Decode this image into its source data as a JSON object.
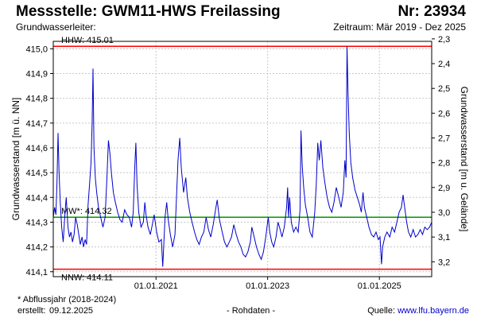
{
  "header": {
    "title": "Messstelle: GWM11-HWS Freilassing",
    "station_number": "Nr: 23934",
    "aquifer_label": "Grundwasserleiter:",
    "period": "Zeitraum: Mär 2019 - Dez 2025"
  },
  "footer": {
    "footnote": "* Abflussjahr (2018-2024)",
    "created_label": "erstellt:",
    "created_date": "09.12.2025",
    "raw_data": "- Rohdaten -",
    "source_label": "Quelle:",
    "source_link": "www.lfu.bayern.de"
  },
  "colors": {
    "series": "#0000cc",
    "hhw": "#ff0000",
    "nnw": "#ff0000",
    "mw": "#009900",
    "grid": "#c8c8c8"
  },
  "chart_data": {
    "type": "line",
    "title": "",
    "xlabel": "",
    "ylabel": "Grundwasserstand [m ü. NN]",
    "ylabel_right": "Grundwasserstand [m u. Gelände]",
    "xlim": [
      "2019-03-01",
      "2025-12-09"
    ],
    "ylim": [
      414.08,
      415.03
    ],
    "ylim_right": [
      3.26,
      2.31
    ],
    "xticks": [
      "01.01.2021",
      "01.01.2023",
      "01.01.2025"
    ],
    "xtick_dates": [
      "2021-01-01",
      "2023-01-01",
      "2025-01-01"
    ],
    "yticks": [
      "414,1",
      "414,2",
      "414,3",
      "414,4",
      "414,5",
      "414,6",
      "414,7",
      "414,8",
      "414,9",
      "415,0"
    ],
    "ytick_values": [
      414.1,
      414.2,
      414.3,
      414.4,
      414.5,
      414.6,
      414.7,
      414.8,
      414.9,
      415.0
    ],
    "yticks_right": [
      "2,3",
      "2,4",
      "2,5",
      "2,6",
      "2,7",
      "2,8",
      "2,9",
      "3,0",
      "3,1",
      "3,2"
    ],
    "ytick_values_right": [
      2.3,
      2.4,
      2.5,
      2.6,
      2.7,
      2.8,
      2.9,
      3.0,
      3.1,
      3.2
    ],
    "grid": true,
    "reference_lines": [
      {
        "label": "HHW: 415.01",
        "value": 415.01
      },
      {
        "label": "MW*: 414.32",
        "value": 414.32
      },
      {
        "label": "NNW: 414.11",
        "value": 414.11
      }
    ],
    "series": [
      {
        "name": "",
        "points": [
          [
            "2019-03-01",
            414.32
          ],
          [
            "2019-03-10",
            414.36
          ],
          [
            "2019-03-18",
            414.33
          ],
          [
            "2019-03-25",
            414.45
          ],
          [
            "2019-04-01",
            414.66
          ],
          [
            "2019-04-08",
            414.5
          ],
          [
            "2019-04-16",
            414.38
          ],
          [
            "2019-04-25",
            414.28
          ],
          [
            "2019-05-05",
            414.22
          ],
          [
            "2019-05-15",
            414.32
          ],
          [
            "2019-05-25",
            414.4
          ],
          [
            "2019-06-05",
            414.28
          ],
          [
            "2019-06-15",
            414.24
          ],
          [
            "2019-06-25",
            414.26
          ],
          [
            "2019-07-05",
            414.22
          ],
          [
            "2019-07-15",
            414.25
          ],
          [
            "2019-07-25",
            414.32
          ],
          [
            "2019-08-05",
            414.29
          ],
          [
            "2019-08-15",
            414.25
          ],
          [
            "2019-08-25",
            414.21
          ],
          [
            "2019-09-05",
            414.24
          ],
          [
            "2019-09-15",
            414.2
          ],
          [
            "2019-09-25",
            414.23
          ],
          [
            "2019-10-05",
            414.21
          ],
          [
            "2019-10-15",
            414.37
          ],
          [
            "2019-10-25",
            414.46
          ],
          [
            "2019-11-03",
            414.54
          ],
          [
            "2019-11-10",
            414.7
          ],
          [
            "2019-11-16",
            414.92
          ],
          [
            "2019-11-22",
            414.6
          ],
          [
            "2019-12-01",
            414.48
          ],
          [
            "2019-12-10",
            414.42
          ],
          [
            "2019-12-22",
            414.36
          ],
          [
            "2020-01-05",
            414.32
          ],
          [
            "2020-01-20",
            414.28
          ],
          [
            "2020-02-03",
            414.32
          ],
          [
            "2020-02-15",
            414.48
          ],
          [
            "2020-02-25",
            414.63
          ],
          [
            "2020-03-05",
            414.58
          ],
          [
            "2020-03-15",
            414.5
          ],
          [
            "2020-03-28",
            414.42
          ],
          [
            "2020-04-10",
            414.38
          ],
          [
            "2020-04-25",
            414.34
          ],
          [
            "2020-05-10",
            414.31
          ],
          [
            "2020-05-25",
            414.3
          ],
          [
            "2020-06-10",
            414.35
          ],
          [
            "2020-06-25",
            414.33
          ],
          [
            "2020-07-10",
            414.32
          ],
          [
            "2020-07-25",
            414.28
          ],
          [
            "2020-08-05",
            414.34
          ],
          [
            "2020-08-15",
            414.52
          ],
          [
            "2020-08-22",
            414.62
          ],
          [
            "2020-08-30",
            414.45
          ],
          [
            "2020-09-10",
            414.34
          ],
          [
            "2020-09-25",
            414.28
          ],
          [
            "2020-10-10",
            414.3
          ],
          [
            "2020-10-20",
            414.38
          ],
          [
            "2020-10-28",
            414.33
          ],
          [
            "2020-11-10",
            414.28
          ],
          [
            "2020-11-25",
            414.25
          ],
          [
            "2020-12-05",
            414.28
          ],
          [
            "2020-12-20",
            414.33
          ],
          [
            "2021-01-05",
            414.26
          ],
          [
            "2021-01-20",
            414.22
          ],
          [
            "2021-02-05",
            414.23
          ],
          [
            "2021-02-14",
            414.12
          ],
          [
            "2021-02-20",
            414.2
          ],
          [
            "2021-03-01",
            414.32
          ],
          [
            "2021-03-12",
            414.38
          ],
          [
            "2021-03-22",
            414.31
          ],
          [
            "2021-04-05",
            414.25
          ],
          [
            "2021-04-20",
            414.2
          ],
          [
            "2021-05-05",
            414.25
          ],
          [
            "2021-05-15",
            414.4
          ],
          [
            "2021-05-25",
            414.55
          ],
          [
            "2021-06-05",
            414.64
          ],
          [
            "2021-06-15",
            414.52
          ],
          [
            "2021-06-30",
            414.42
          ],
          [
            "2021-07-15",
            414.48
          ],
          [
            "2021-07-25",
            414.4
          ],
          [
            "2021-08-10",
            414.34
          ],
          [
            "2021-08-25",
            414.3
          ],
          [
            "2021-09-10",
            414.26
          ],
          [
            "2021-09-25",
            414.23
          ],
          [
            "2021-10-10",
            414.21
          ],
          [
            "2021-10-25",
            414.24
          ],
          [
            "2021-11-10",
            414.26
          ],
          [
            "2021-11-25",
            414.32
          ],
          [
            "2021-12-10",
            414.27
          ],
          [
            "2021-12-25",
            414.24
          ],
          [
            "2022-01-10",
            414.29
          ],
          [
            "2022-01-25",
            414.35
          ],
          [
            "2022-02-05",
            414.39
          ],
          [
            "2022-02-20",
            414.31
          ],
          [
            "2022-03-10",
            414.26
          ],
          [
            "2022-03-25",
            414.22
          ],
          [
            "2022-04-10",
            414.2
          ],
          [
            "2022-04-25",
            414.22
          ],
          [
            "2022-05-10",
            414.24
          ],
          [
            "2022-05-25",
            414.29
          ],
          [
            "2022-06-10",
            414.25
          ],
          [
            "2022-06-25",
            414.22
          ],
          [
            "2022-07-10",
            414.2
          ],
          [
            "2022-07-25",
            414.17
          ],
          [
            "2022-08-10",
            414.16
          ],
          [
            "2022-08-25",
            414.18
          ],
          [
            "2022-09-10",
            414.22
          ],
          [
            "2022-09-20",
            414.28
          ],
          [
            "2022-10-05",
            414.24
          ],
          [
            "2022-10-20",
            414.2
          ],
          [
            "2022-11-05",
            414.17
          ],
          [
            "2022-11-20",
            414.15
          ],
          [
            "2022-12-05",
            414.18
          ],
          [
            "2022-12-20",
            414.24
          ],
          [
            "2023-01-05",
            414.32
          ],
          [
            "2023-01-15",
            414.26
          ],
          [
            "2023-01-28",
            414.22
          ],
          [
            "2023-02-10",
            414.2
          ],
          [
            "2023-02-25",
            414.24
          ],
          [
            "2023-03-10",
            414.3
          ],
          [
            "2023-03-20",
            414.28
          ],
          [
            "2023-04-05",
            414.24
          ],
          [
            "2023-04-20",
            414.28
          ],
          [
            "2023-05-05",
            414.36
          ],
          [
            "2023-05-12",
            414.44
          ],
          [
            "2023-05-18",
            414.32
          ],
          [
            "2023-05-25",
            414.4
          ],
          [
            "2023-06-05",
            414.3
          ],
          [
            "2023-06-20",
            414.26
          ],
          [
            "2023-07-05",
            414.28
          ],
          [
            "2023-07-20",
            414.26
          ],
          [
            "2023-08-01",
            414.35
          ],
          [
            "2023-08-07",
            414.67
          ],
          [
            "2023-08-15",
            414.53
          ],
          [
            "2023-08-25",
            414.44
          ],
          [
            "2023-09-05",
            414.37
          ],
          [
            "2023-09-20",
            414.32
          ],
          [
            "2023-10-05",
            414.26
          ],
          [
            "2023-10-20",
            414.24
          ],
          [
            "2023-11-05",
            414.34
          ],
          [
            "2023-11-15",
            414.45
          ],
          [
            "2023-11-25",
            414.62
          ],
          [
            "2023-12-05",
            414.55
          ],
          [
            "2023-12-15",
            414.63
          ],
          [
            "2023-12-28",
            414.52
          ],
          [
            "2024-01-10",
            414.46
          ],
          [
            "2024-01-25",
            414.4
          ],
          [
            "2024-02-10",
            414.36
          ],
          [
            "2024-02-25",
            414.34
          ],
          [
            "2024-03-10",
            414.38
          ],
          [
            "2024-03-25",
            414.44
          ],
          [
            "2024-04-10",
            414.4
          ],
          [
            "2024-04-25",
            414.36
          ],
          [
            "2024-05-10",
            414.42
          ],
          [
            "2024-05-20",
            414.55
          ],
          [
            "2024-05-28",
            414.48
          ],
          [
            "2024-06-03",
            415.01
          ],
          [
            "2024-06-10",
            414.82
          ],
          [
            "2024-06-18",
            414.66
          ],
          [
            "2024-06-28",
            414.54
          ],
          [
            "2024-07-10",
            414.48
          ],
          [
            "2024-07-25",
            414.43
          ],
          [
            "2024-08-10",
            414.4
          ],
          [
            "2024-08-25",
            414.37
          ],
          [
            "2024-09-05",
            414.34
          ],
          [
            "2024-09-16",
            414.42
          ],
          [
            "2024-09-25",
            414.36
          ],
          [
            "2024-10-10",
            414.32
          ],
          [
            "2024-10-25",
            414.28
          ],
          [
            "2024-11-10",
            414.25
          ],
          [
            "2024-11-25",
            414.24
          ],
          [
            "2024-12-10",
            414.26
          ],
          [
            "2024-12-25",
            414.23
          ],
          [
            "2025-01-05",
            414.24
          ],
          [
            "2025-01-15",
            414.13
          ],
          [
            "2025-01-22",
            414.2
          ],
          [
            "2025-02-05",
            414.24
          ],
          [
            "2025-02-20",
            414.26
          ],
          [
            "2025-03-10",
            414.24
          ],
          [
            "2025-03-25",
            414.28
          ],
          [
            "2025-04-10",
            414.26
          ],
          [
            "2025-04-25",
            414.3
          ],
          [
            "2025-05-10",
            414.34
          ],
          [
            "2025-05-25",
            414.36
          ],
          [
            "2025-06-05",
            414.41
          ],
          [
            "2025-06-15",
            414.36
          ],
          [
            "2025-06-28",
            414.3
          ],
          [
            "2025-07-10",
            414.26
          ],
          [
            "2025-07-25",
            414.24
          ],
          [
            "2025-08-10",
            414.27
          ],
          [
            "2025-08-25",
            414.24
          ],
          [
            "2025-09-10",
            414.25
          ],
          [
            "2025-09-25",
            414.27
          ],
          [
            "2025-10-10",
            414.25
          ],
          [
            "2025-10-25",
            414.28
          ],
          [
            "2025-11-10",
            414.27
          ],
          [
            "2025-11-25",
            414.28
          ],
          [
            "2025-12-09",
            414.3
          ]
        ]
      }
    ]
  }
}
